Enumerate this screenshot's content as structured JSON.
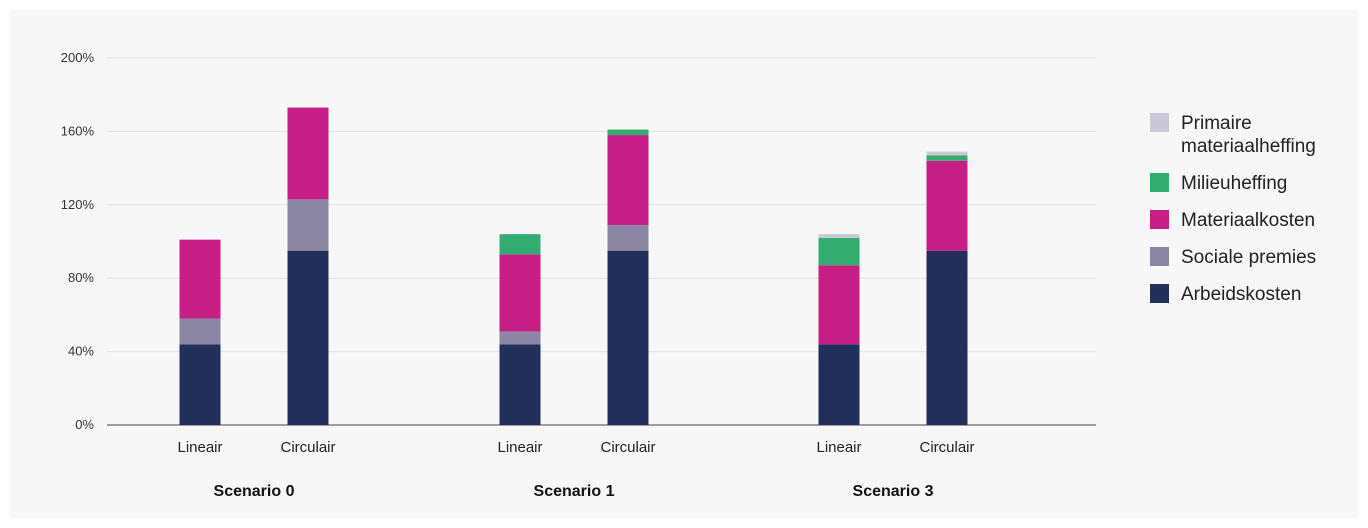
{
  "chart_data": {
    "type": "bar",
    "stacked": true,
    "ylim": [
      0,
      200
    ],
    "yticks": [
      "0%",
      "40%",
      "80%",
      "120%",
      "160%",
      "200%"
    ],
    "grid": true,
    "legend_position": "right",
    "groups": [
      {
        "label": "Scenario 0",
        "bars": [
          {
            "label": "Lineair",
            "values": [
              44,
              14,
              43,
              0,
              0
            ]
          },
          {
            "label": "Circulair",
            "values": [
              95,
              28,
              50,
              0,
              0
            ]
          }
        ]
      },
      {
        "label": "Scenario 1",
        "bars": [
          {
            "label": "Lineair",
            "values": [
              44,
              7,
              42,
              11,
              0
            ]
          },
          {
            "label": "Circulair",
            "values": [
              95,
              14,
              49,
              3,
              0
            ]
          }
        ]
      },
      {
        "label": "Scenario 3",
        "bars": [
          {
            "label": "Lineair",
            "values": [
              44,
              0,
              43,
              15,
              2
            ]
          },
          {
            "label": "Circulair",
            "values": [
              95,
              0,
              49,
              3,
              2
            ]
          }
        ]
      }
    ],
    "series": [
      {
        "name": "Arbeidskosten",
        "color": "#232f5b"
      },
      {
        "name": "Sociale premies",
        "color": "#8a86a4"
      },
      {
        "name": "Materiaalkosten",
        "color": "#c71e86"
      },
      {
        "name": "Milieuheffing",
        "color": "#33ac70"
      },
      {
        "name": "Primaire materiaalheffing",
        "color": "#c9c7d8"
      }
    ]
  }
}
